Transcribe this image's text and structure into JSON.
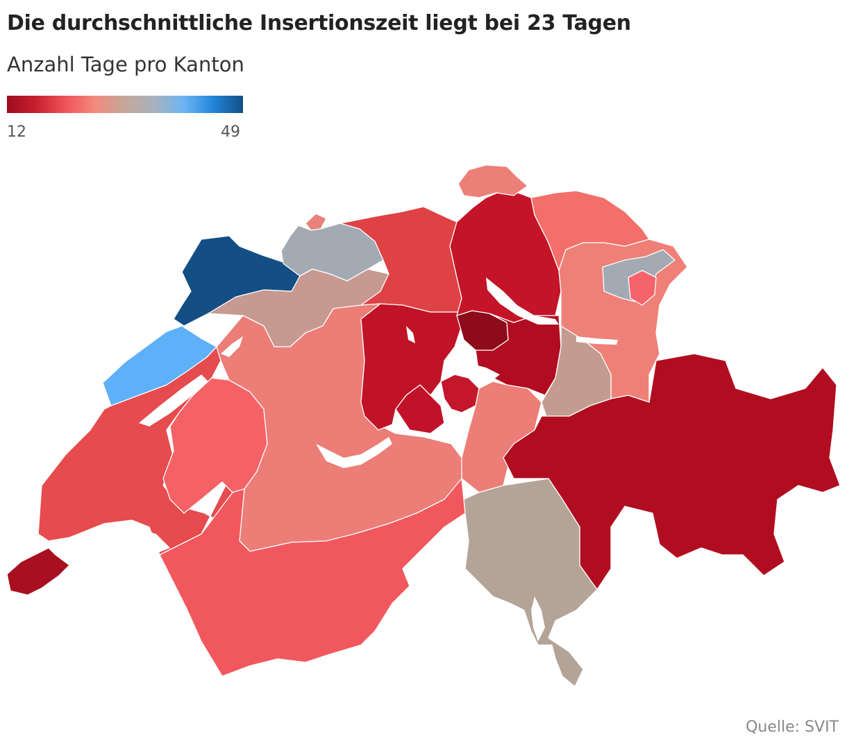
{
  "title": "Die durchschnittliche Insertionszeit liegt bei 23 Tagen",
  "subtitle": "Anzahl Tage pro Kanton",
  "legend": {
    "min": "12",
    "max": "49",
    "gradient": [
      "#9e0b1f",
      "#c8202f",
      "#f0545c",
      "#f28a7e",
      "#c4a79a",
      "#a8b2bd",
      "#6cb4f5",
      "#2285d8",
      "#124f85"
    ]
  },
  "source": "Quelle: SVIT",
  "regions": [
    {
      "id": "GE",
      "color": "#a9101f"
    },
    {
      "id": "VD",
      "color": "#e64b4d"
    },
    {
      "id": "VS",
      "color": "#f1585d"
    },
    {
      "id": "FR",
      "color": "#f56266"
    },
    {
      "id": "NE",
      "color": "#5eb0f8"
    },
    {
      "id": "JU",
      "color": "#134f84"
    },
    {
      "id": "BE",
      "color": "#ec7d77"
    },
    {
      "id": "SO",
      "color": "#c69a90"
    },
    {
      "id": "BL",
      "color": "#a3aab3"
    },
    {
      "id": "BS",
      "color": "#e9827a"
    },
    {
      "id": "AG",
      "color": "#df4245"
    },
    {
      "id": "LU",
      "color": "#c11327"
    },
    {
      "id": "OW",
      "color": "#c21229"
    },
    {
      "id": "NW",
      "color": "#c4172b"
    },
    {
      "id": "ZG",
      "color": "#8d0b1a"
    },
    {
      "id": "SZ",
      "color": "#b10c20"
    },
    {
      "id": "UR",
      "color": "#ec7d77"
    },
    {
      "id": "ZH",
      "color": "#c31428"
    },
    {
      "id": "SH",
      "color": "#ed7f79"
    },
    {
      "id": "TG",
      "color": "#f27069"
    },
    {
      "id": "SG",
      "color": "#ee8078"
    },
    {
      "id": "AR",
      "color": "#a3aab3"
    },
    {
      "id": "AI",
      "color": "#f5646a"
    },
    {
      "id": "GL",
      "color": "#c49c8f"
    },
    {
      "id": "GR",
      "color": "#b10d20"
    },
    {
      "id": "TI",
      "color": "#b4a397"
    }
  ]
}
